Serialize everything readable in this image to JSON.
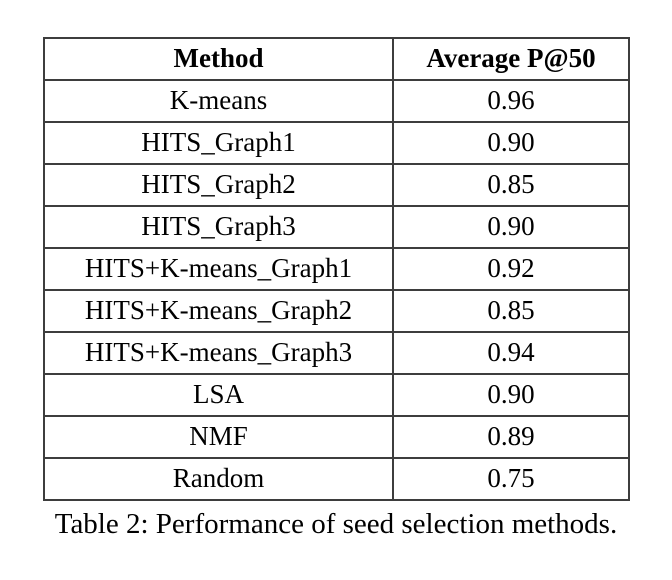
{
  "table": {
    "headers": {
      "method": "Method",
      "metric": "Average P@50"
    },
    "rows": [
      {
        "method": "K-means",
        "value": "0.96"
      },
      {
        "method": "HITS_Graph1",
        "value": "0.90"
      },
      {
        "method": "HITS_Graph2",
        "value": "0.85"
      },
      {
        "method": "HITS_Graph3",
        "value": "0.90"
      },
      {
        "method": "HITS+K-means_Graph1",
        "value": "0.92"
      },
      {
        "method": "HITS+K-means_Graph2",
        "value": "0.85"
      },
      {
        "method": "HITS+K-means_Graph3",
        "value": "0.94"
      },
      {
        "method": "LSA",
        "value": "0.90"
      },
      {
        "method": "NMF",
        "value": "0.89"
      },
      {
        "method": "Random",
        "value": "0.75"
      }
    ],
    "border_color": "#3d3d3d",
    "text_color": "#000000"
  },
  "caption": "Table 2: Performance of seed selection methods."
}
